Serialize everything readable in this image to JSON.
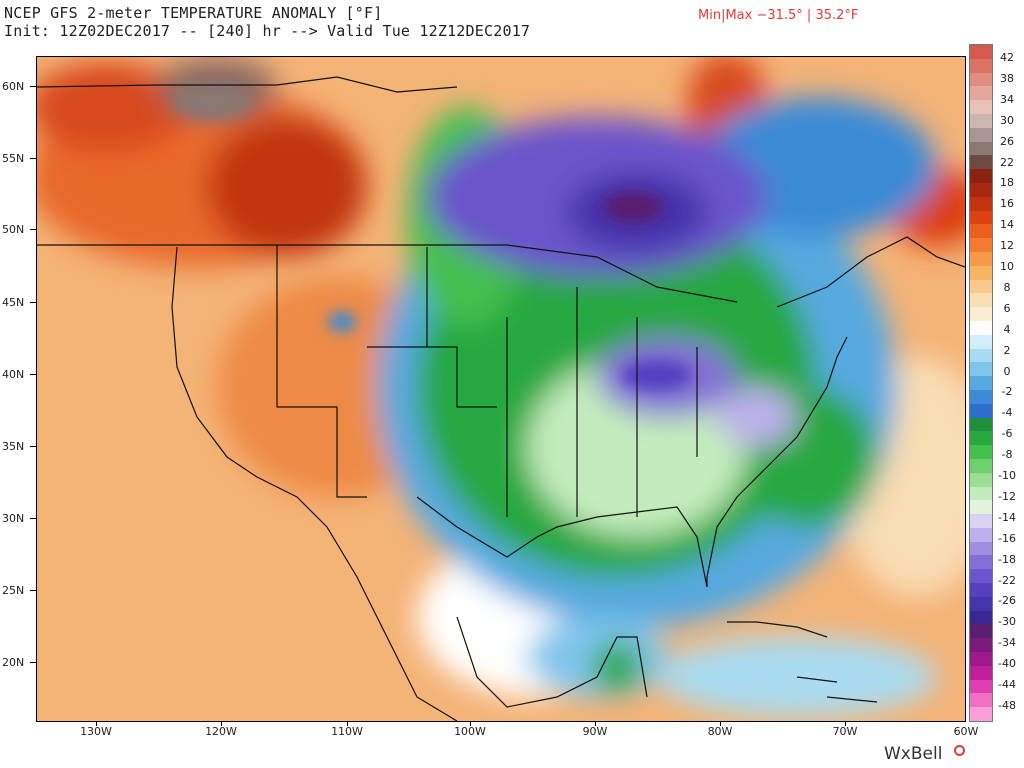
{
  "header": {
    "title_line1": "NCEP GFS 2-meter TEMPERATURE ANOMALY [°F]",
    "title_line2": "Init: 12Z02DEC2017 -- [240] hr --> Valid Tue 12Z12DEC2017",
    "minmax": "Min|Max −31.5° | 35.2°F",
    "minmax_color": "#e53b3b"
  },
  "map": {
    "latitude_labels": [
      "60N",
      "55N",
      "50N",
      "45N",
      "40N",
      "35N",
      "30N",
      "25N",
      "20N"
    ],
    "longitude_labels": [
      "130W",
      "120W",
      "110W",
      "100W",
      "90W",
      "80W",
      "70W",
      "60W"
    ]
  },
  "colorbar": {
    "labels": [
      "42",
      "38",
      "34",
      "30",
      "26",
      "22",
      "18",
      "16",
      "14",
      "12",
      "10",
      "8",
      "6",
      "4",
      "2",
      "0",
      "-2",
      "-4",
      "-6",
      "-8",
      "-10",
      "-12",
      "-14",
      "-16",
      "-18",
      "-22",
      "-26",
      "-30",
      "-34",
      "-40",
      "-44",
      "-48"
    ],
    "colors": [
      "#d45a4f",
      "#d97465",
      "#de8d80",
      "#e3a79b",
      "#e8c0b8",
      "#c9b8b0",
      "#a89790",
      "#8a7872",
      "#6e4a40",
      "#8a2213",
      "#a6290f",
      "#c2340f",
      "#dd4111",
      "#ea5f1f",
      "#f27b30",
      "#f59a48",
      "#f7b465",
      "#f8c98b",
      "#f9ddb3",
      "#fbecd2",
      "#ffffff",
      "#d3eef9",
      "#a9dcf2",
      "#7fc5ea",
      "#57a9e0",
      "#3b8bd6",
      "#2d6dcb",
      "#1f8f3b",
      "#27a83f",
      "#44c04d",
      "#6fd06d",
      "#9cde96",
      "#c3ecbc",
      "#e1f5dc",
      "#d9d2f2",
      "#bcb0ea",
      "#9f8fe0",
      "#8370d6",
      "#6b55cc",
      "#5540bf",
      "#4433aa",
      "#3a2890",
      "#5a1f6e",
      "#7a1a7a",
      "#9c1a8a",
      "#c01f9a",
      "#df3fb0",
      "#f070c6",
      "#f9a0da"
    ]
  },
  "brand": {
    "name": "WxBell"
  }
}
